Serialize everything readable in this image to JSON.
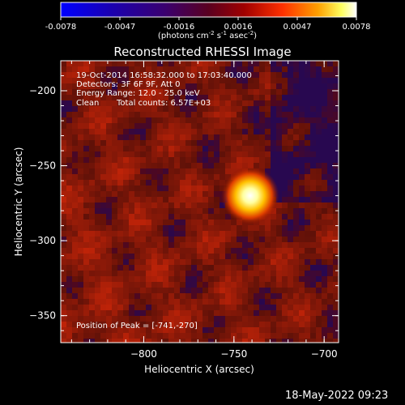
{
  "chart_data": {
    "type": "heatmap",
    "title": "Reconstructed RHESSI Image",
    "xlabel": "Heliocentric X (arcsec)",
    "ylabel": "Heliocentric Y (arcsec)",
    "x_ticks": [
      -800,
      -750,
      -700
    ],
    "y_ticks": [
      -200,
      -250,
      -300,
      -350
    ],
    "xlim": [
      -846,
      -692
    ],
    "ylim": [
      -368,
      -180
    ],
    "colorbar": {
      "min": -0.0078,
      "max": 0.0078,
      "ticks": [
        "-0.0078",
        "-0.0047",
        "-0.0016",
        "0.0016",
        "0.0047",
        "0.0078"
      ],
      "units_prefix": "(photons cm",
      "units_exp1": "-2",
      "units_mid": " s",
      "units_exp2": "-1",
      "units_mid2": " asec",
      "units_exp3": "-2",
      "units_suffix": ")"
    },
    "peak": {
      "x": -741,
      "y": -270,
      "value": 0.0078
    }
  },
  "annotations": {
    "line1": "19-Oct-2014 16:58:32.000 to 17:03:40.000",
    "line2": "Detectors: 3F 6F 9F, Att 0",
    "line3": "Energy Range: 12.0 - 25.0 keV",
    "line4_a": "Clean",
    "line4_b": "Total counts: 6.57E+03",
    "peak_label": "Position of Peak = [-741,-270]"
  },
  "timestamp": "18-May-2022 09:23"
}
